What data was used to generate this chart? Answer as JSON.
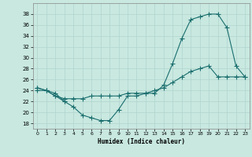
{
  "xlabel": "Humidex (Indice chaleur)",
  "bg_color": "#c8e8e0",
  "grid_color": "#b0d4cc",
  "line_color": "#1a6e6e",
  "xlim": [
    -0.5,
    23.5
  ],
  "ylim": [
    17,
    40
  ],
  "yticks": [
    18,
    20,
    22,
    24,
    26,
    28,
    30,
    32,
    34,
    36,
    38
  ],
  "xticks": [
    0,
    1,
    2,
    3,
    4,
    5,
    6,
    7,
    8,
    9,
    10,
    11,
    12,
    13,
    14,
    15,
    16,
    17,
    18,
    19,
    20,
    21,
    22,
    23
  ],
  "curve1": [
    24.0,
    24.0,
    23.5,
    22.0,
    null,
    null,
    null,
    null,
    null,
    null,
    null,
    null,
    null,
    null,
    null,
    null,
    null,
    null,
    null,
    null,
    null,
    null,
    null,
    null
  ],
  "curve2": [
    24.5,
    24.0,
    23.0,
    22.0,
    21.0,
    19.5,
    19.0,
    18.5,
    18.5,
    20.5,
    23.0,
    23.0,
    23.5,
    23.5,
    25.0,
    29.0,
    33.5,
    37.0,
    37.5,
    38.0,
    38.0,
    35.5,
    28.5,
    26.5
  ],
  "curve3": [
    24.5,
    24.0,
    23.0,
    22.5,
    22.5,
    22.5,
    23.0,
    23.0,
    23.0,
    23.0,
    23.5,
    23.5,
    23.5,
    24.0,
    24.5,
    25.5,
    26.5,
    27.5,
    28.0,
    28.5,
    26.5,
    26.5,
    26.5,
    26.5
  ]
}
